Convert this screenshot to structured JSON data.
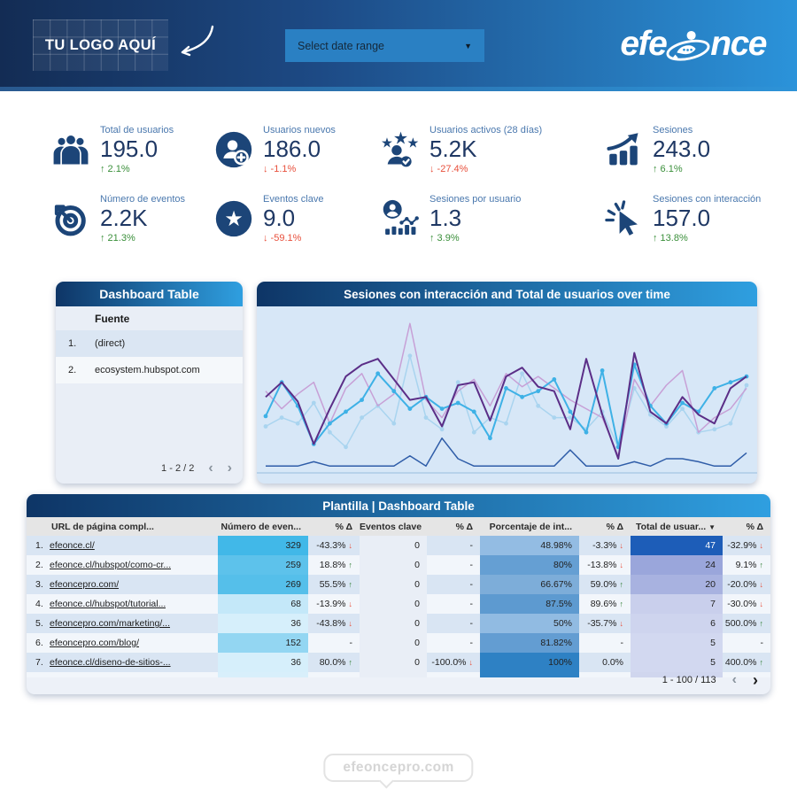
{
  "header": {
    "logo_placeholder": "TU LOGO AQUÍ",
    "date_range_label": "Select date range",
    "brand": {
      "prefix": "efe",
      "suffix": "nce"
    }
  },
  "kpis": [
    {
      "icon": "users-group-icon",
      "label": "Total de usuarios",
      "value": "195.0",
      "delta": "2.1%",
      "direction": "up"
    },
    {
      "icon": "user-add-icon",
      "label": "Usuarios nuevos",
      "value": "186.0",
      "delta": "-1.1%",
      "direction": "down"
    },
    {
      "icon": "user-stars-icon",
      "label": "Usuarios activos (28 días)",
      "value": "5.2K",
      "delta": "-27.4%",
      "direction": "down"
    },
    {
      "icon": "growth-chart-icon",
      "label": "Sesiones",
      "value": "243.0",
      "delta": "6.1%",
      "direction": "up"
    },
    {
      "icon": "target-arrow-icon",
      "label": "Número de eventos",
      "value": "2.2K",
      "delta": "21.3%",
      "direction": "up"
    },
    {
      "icon": "star-circle-icon",
      "label": "Eventos clave",
      "value": "9.0",
      "delta": "-59.1%",
      "direction": "down"
    },
    {
      "icon": "user-chart-icon",
      "label": "Sesiones por usuario",
      "value": "1.3",
      "delta": "3.9%",
      "direction": "up"
    },
    {
      "icon": "cursor-click-icon",
      "label": "Sesiones con interacción",
      "value": "157.0",
      "delta": "13.8%",
      "direction": "up"
    }
  ],
  "source_table": {
    "title": "Dashboard Table",
    "column_header": "Fuente",
    "rows": [
      {
        "index": "1.",
        "source": "(direct)"
      },
      {
        "index": "2.",
        "source": "ecosystem.hubspot.com"
      }
    ],
    "pagination": "1 - 2 / 2"
  },
  "chart_data": {
    "type": "line",
    "title": "Sesiones con interacción and Total de usuarios over time",
    "x_count": 31,
    "axes_visible": false,
    "grid": false,
    "legend_position": "none",
    "ylim": [
      0,
      100
    ],
    "series": [
      {
        "id": "light-blue-line",
        "color": "#a9d4ef",
        "width": 1.5,
        "markers": true,
        "values": [
          28,
          34,
          30,
          44,
          24,
          14,
          34,
          42,
          30,
          76,
          34,
          26,
          58,
          24,
          34,
          30,
          64,
          42,
          34,
          34,
          26,
          38,
          14,
          54,
          36,
          28,
          40,
          24,
          26,
          30,
          56
        ]
      },
      {
        "id": "light-purple-line",
        "color": "#c7a0d6",
        "width": 1.5,
        "markers": false,
        "values": [
          52,
          40,
          50,
          58,
          30,
          54,
          64,
          42,
          50,
          98,
          46,
          34,
          52,
          60,
          42,
          64,
          55,
          62,
          54,
          46,
          40,
          34,
          8,
          60,
          42,
          56,
          66,
          24,
          34,
          40,
          54
        ]
      },
      {
        "id": "navy-baseline-line",
        "color": "#2f5da8",
        "width": 1.5,
        "markers": false,
        "values": [
          1,
          1,
          1,
          4,
          1,
          1,
          1,
          1,
          1,
          8,
          1,
          20,
          6,
          1,
          1,
          1,
          1,
          1,
          1,
          12,
          1,
          1,
          1,
          4,
          1,
          6,
          6,
          4,
          1,
          1,
          10
        ]
      },
      {
        "id": "cyan-line",
        "color": "#3eb1e6",
        "width": 2,
        "markers": true,
        "values": [
          35,
          58,
          42,
          16,
          30,
          38,
          46,
          64,
          52,
          40,
          48,
          40,
          44,
          38,
          20,
          54,
          48,
          52,
          60,
          38,
          24,
          66,
          14,
          70,
          42,
          30,
          44,
          38,
          54,
          58,
          62
        ]
      },
      {
        "id": "dark-purple-line",
        "color": "#5b2e87",
        "width": 2,
        "markers": false,
        "values": [
          48,
          58,
          45,
          16,
          40,
          62,
          70,
          74,
          60,
          46,
          48,
          28,
          56,
          58,
          32,
          62,
          68,
          55,
          52,
          26,
          74,
          36,
          6,
          78,
          38,
          30,
          48,
          36,
          30,
          54,
          62
        ]
      }
    ]
  },
  "main_table": {
    "title": "Plantilla | Dashboard Table",
    "columns": [
      {
        "label": "URL de página compl...",
        "align": "left"
      },
      {
        "label": "Número de even..."
      },
      {
        "label": "% Δ"
      },
      {
        "label": "Eventos clave"
      },
      {
        "label": "% Δ"
      },
      {
        "label": "Porcentaje de int..."
      },
      {
        "label": "% Δ"
      },
      {
        "label": "Total de usuar...",
        "sorted": true
      },
      {
        "label": "% Δ"
      }
    ],
    "rows": [
      {
        "index": "1.",
        "url": "efeonce.cl/",
        "events": {
          "v": "329",
          "bg": "#41b8e8"
        },
        "events_delta": {
          "t": "-43.3%",
          "d": "down"
        },
        "key": {
          "v": "0",
          "bg": "#e9eef6"
        },
        "key_delta": {
          "t": "-",
          "d": "none"
        },
        "pct": {
          "v": "48.98%",
          "bg": "#93bce3"
        },
        "pct_delta": {
          "t": "-3.3%",
          "d": "down"
        },
        "users": {
          "v": "47",
          "bg": "#1d5db8",
          "fg": "#ffffff"
        },
        "users_delta": {
          "t": "-32.9%",
          "d": "down"
        }
      },
      {
        "index": "2.",
        "url": "efeonce.cl/hubspot/como-cr...",
        "events": {
          "v": "259",
          "bg": "#5dc2eb"
        },
        "events_delta": {
          "t": "18.8%",
          "d": "up"
        },
        "key": {
          "v": "0",
          "bg": "#e9eef6"
        },
        "key_delta": {
          "t": "-",
          "d": "none"
        },
        "pct": {
          "v": "80%",
          "bg": "#659fd3"
        },
        "pct_delta": {
          "t": "-13.8%",
          "d": "down"
        },
        "users": {
          "v": "24",
          "bg": "#9aa6db"
        },
        "users_delta": {
          "t": "9.1%",
          "d": "up"
        }
      },
      {
        "index": "3.",
        "url": "efeoncepro.com/",
        "events": {
          "v": "269",
          "bg": "#55bfea"
        },
        "events_delta": {
          "t": "55.5%",
          "d": "up"
        },
        "key": {
          "v": "0",
          "bg": "#e9eef6"
        },
        "key_delta": {
          "t": "-",
          "d": "none"
        },
        "pct": {
          "v": "66.67%",
          "bg": "#7dadd9"
        },
        "pct_delta": {
          "t": "59.0%",
          "d": "up"
        },
        "users": {
          "v": "20",
          "bg": "#a8b2e0"
        },
        "users_delta": {
          "t": "-20.0%",
          "d": "down"
        }
      },
      {
        "index": "4.",
        "url": "efeonce.cl/hubspot/tutorial...",
        "events": {
          "v": "68",
          "bg": "#c4e8f9"
        },
        "events_delta": {
          "t": "-13.9%",
          "d": "down"
        },
        "key": {
          "v": "0",
          "bg": "#e9eef6"
        },
        "key_delta": {
          "t": "-",
          "d": "none"
        },
        "pct": {
          "v": "87.5%",
          "bg": "#5d9ad0"
        },
        "pct_delta": {
          "t": "89.6%",
          "d": "up"
        },
        "users": {
          "v": "7",
          "bg": "#c9cfec"
        },
        "users_delta": {
          "t": "-30.0%",
          "d": "down"
        }
      },
      {
        "index": "5.",
        "url": "efeoncepro.com/marketing/...",
        "events": {
          "v": "36",
          "bg": "#d6effb"
        },
        "events_delta": {
          "t": "-43.8%",
          "d": "down"
        },
        "key": {
          "v": "0",
          "bg": "#e9eef6"
        },
        "key_delta": {
          "t": "-",
          "d": "none"
        },
        "pct": {
          "v": "50%",
          "bg": "#91bbe2"
        },
        "pct_delta": {
          "t": "-35.7%",
          "d": "down"
        },
        "users": {
          "v": "6",
          "bg": "#ced4ee"
        },
        "users_delta": {
          "t": "500.0%",
          "d": "up"
        }
      },
      {
        "index": "6.",
        "url": "efeoncepro.com/blog/",
        "events": {
          "v": "152",
          "bg": "#93d6f2"
        },
        "events_delta": {
          "t": "-",
          "d": "none"
        },
        "key": {
          "v": "0",
          "bg": "#e9eef6"
        },
        "key_delta": {
          "t": "-",
          "d": "none"
        },
        "pct": {
          "v": "81.82%",
          "bg": "#639dd2"
        },
        "pct_delta": {
          "t": "-",
          "d": "none"
        },
        "users": {
          "v": "5",
          "bg": "#d2d8f0"
        },
        "users_delta": {
          "t": "-",
          "d": "none"
        }
      },
      {
        "index": "7.",
        "url": "efeonce.cl/diseno-de-sitios-...",
        "events": {
          "v": "36",
          "bg": "#d6effb"
        },
        "events_delta": {
          "t": "80.0%",
          "d": "up"
        },
        "key": {
          "v": "0",
          "bg": "#e9eef6"
        },
        "key_delta": {
          "t": "-100.0%",
          "d": "down"
        },
        "pct": {
          "v": "100%",
          "bg": "#2e81c4"
        },
        "pct_delta": {
          "t": "0.0%",
          "d": "none"
        },
        "users": {
          "v": "5",
          "bg": "#d2d8f0"
        },
        "users_delta": {
          "t": "400.0%",
          "d": "up"
        }
      }
    ],
    "partial_row": {
      "events_bg": "#d8effb",
      "pct_bg": "#2e81c4",
      "users_bg": "#d0d6ee"
    },
    "pagination": "1 - 100 / 113"
  },
  "footer": {
    "text": "efeoncepro.com"
  },
  "colors": {
    "header_gradient_start": "#132c54",
    "header_gradient_end": "#2b93da",
    "card_gradient_start": "#0e3566",
    "card_gradient_end": "#2f9fe0",
    "kpi_icon": "#1c4578",
    "kpi_value": "#1f3864",
    "kpi_label": "#4a78ae",
    "positive": "#3a8f3a",
    "negative": "#e8503c",
    "chart_bg": "#d7e7f7",
    "row_stripe_dark": "#d9e5f3",
    "row_stripe_light": "#f2f6fb"
  }
}
